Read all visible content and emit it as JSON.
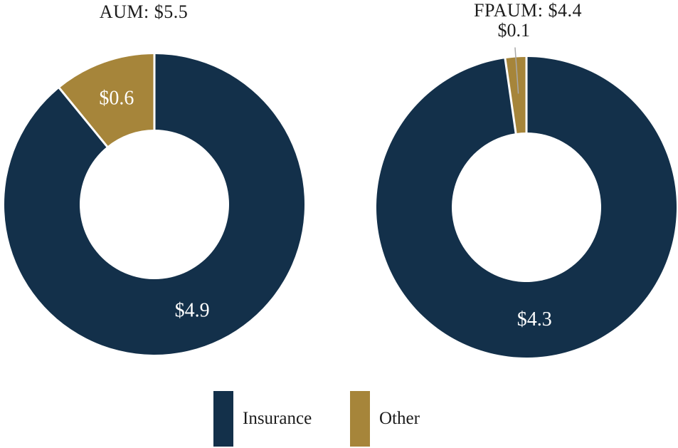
{
  "chart_data": [
    {
      "type": "pie",
      "subtype": "donut",
      "title": "AUM: $5.5",
      "total": 5.5,
      "hole": 0.5,
      "rotation_deg": 0,
      "direction": "clockwise",
      "slices": [
        {
          "name": "Insurance",
          "value": 4.9,
          "label": "$4.9",
          "color_key": "insurance",
          "label_placement": "inside"
        },
        {
          "name": "Other",
          "value": 0.6,
          "label": "$0.6",
          "color_key": "other",
          "label_placement": "inside"
        }
      ]
    },
    {
      "type": "pie",
      "subtype": "donut",
      "title": "FPAUM: $4.4",
      "total": 4.4,
      "hole": 0.5,
      "rotation_deg": 0,
      "direction": "clockwise",
      "slices": [
        {
          "name": "Insurance",
          "value": 4.3,
          "label": "$4.3",
          "color_key": "insurance",
          "label_placement": "inside"
        },
        {
          "name": "Other",
          "value": 0.1,
          "label": "$0.1",
          "color_key": "other",
          "label_placement": "outside"
        }
      ]
    }
  ],
  "legend": {
    "position": "bottom",
    "items": [
      {
        "label": "Insurance",
        "color_key": "insurance"
      },
      {
        "label": "Other",
        "color_key": "other"
      }
    ]
  },
  "colors": {
    "insurance": "#13304A",
    "other": "#A6853A",
    "inside_label_text": "#FFFFFF",
    "outside_label_text": "#1F1F1F",
    "title_text": "#1C1C1C",
    "leader_line": "#A8A8A8",
    "slice_gap": "#FFFFFF",
    "background": "#FFFFFF"
  }
}
